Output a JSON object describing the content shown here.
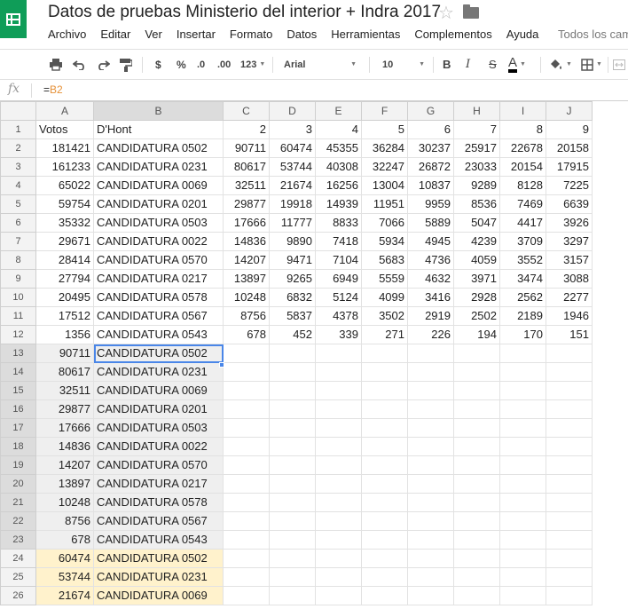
{
  "app": {
    "title": "Datos de pruebas Ministerio del interior + Indra 2017",
    "menu": [
      "Archivo",
      "Editar",
      "Ver",
      "Insertar",
      "Formato",
      "Datos",
      "Herramientas",
      "Complementos",
      "Ayuda"
    ],
    "menu_hint": "Todos los cam"
  },
  "toolbar": {
    "currency": "$",
    "percent": "%",
    "dec_decrease": ".0",
    "dec_increase": ".00",
    "more_formats": "123",
    "font": "Arial",
    "font_size": "10",
    "bold": "B",
    "italic": "I",
    "strike": "S",
    "text_color_glyph": "A"
  },
  "formula": {
    "fx_label": "fx",
    "prefix": "=",
    "ref": "B2"
  },
  "colors": {
    "brand": "#0f9d58",
    "selection": "#4a86e8",
    "highlight": "#fff2cc",
    "formula_ref": "#e69138"
  },
  "grid": {
    "columns": [
      "A",
      "B",
      "C",
      "D",
      "E",
      "F",
      "G",
      "H",
      "I",
      "J"
    ],
    "rows": [
      {
        "n": "1",
        "cells": [
          "Votos",
          "D'Hont",
          "2",
          "3",
          "4",
          "5",
          "6",
          "7",
          "8",
          "9"
        ]
      },
      {
        "n": "2",
        "cells": [
          "181421",
          "CANDIDATURA 0502",
          "90711",
          "60474",
          "45355",
          "36284",
          "30237",
          "25917",
          "22678",
          "20158"
        ]
      },
      {
        "n": "3",
        "cells": [
          "161233",
          "CANDIDATURA 0231",
          "80617",
          "53744",
          "40308",
          "32247",
          "26872",
          "23033",
          "20154",
          "17915"
        ]
      },
      {
        "n": "4",
        "cells": [
          "65022",
          "CANDIDATURA 0069",
          "32511",
          "21674",
          "16256",
          "13004",
          "10837",
          "9289",
          "8128",
          "7225"
        ]
      },
      {
        "n": "5",
        "cells": [
          "59754",
          "CANDIDATURA 0201",
          "29877",
          "19918",
          "14939",
          "11951",
          "9959",
          "8536",
          "7469",
          "6639"
        ]
      },
      {
        "n": "6",
        "cells": [
          "35332",
          "CANDIDATURA 0503",
          "17666",
          "11777",
          "8833",
          "7066",
          "5889",
          "5047",
          "4417",
          "3926"
        ]
      },
      {
        "n": "7",
        "cells": [
          "29671",
          "CANDIDATURA 0022",
          "14836",
          "9890",
          "7418",
          "5934",
          "4945",
          "4239",
          "3709",
          "3297"
        ]
      },
      {
        "n": "8",
        "cells": [
          "28414",
          "CANDIDATURA 0570",
          "14207",
          "9471",
          "7104",
          "5683",
          "4736",
          "4059",
          "3552",
          "3157"
        ]
      },
      {
        "n": "9",
        "cells": [
          "27794",
          "CANDIDATURA 0217",
          "13897",
          "9265",
          "6949",
          "5559",
          "4632",
          "3971",
          "3474",
          "3088"
        ]
      },
      {
        "n": "10",
        "cells": [
          "20495",
          "CANDIDATURA 0578",
          "10248",
          "6832",
          "5124",
          "4099",
          "3416",
          "2928",
          "2562",
          "2277"
        ]
      },
      {
        "n": "11",
        "cells": [
          "17512",
          "CANDIDATURA 0567",
          "8756",
          "5837",
          "4378",
          "3502",
          "2919",
          "2502",
          "2189",
          "1946"
        ]
      },
      {
        "n": "12",
        "cells": [
          "1356",
          "CANDIDATURA 0543",
          "678",
          "452",
          "339",
          "271",
          "226",
          "194",
          "170",
          "151"
        ]
      },
      {
        "n": "13",
        "cells": [
          "90711",
          "CANDIDATURA 0502",
          "",
          "",
          "",
          "",
          "",
          "",
          "",
          ""
        ]
      },
      {
        "n": "14",
        "cells": [
          "80617",
          "CANDIDATURA 0231",
          "",
          "",
          "",
          "",
          "",
          "",
          "",
          ""
        ]
      },
      {
        "n": "15",
        "cells": [
          "32511",
          "CANDIDATURA 0069",
          "",
          "",
          "",
          "",
          "",
          "",
          "",
          ""
        ]
      },
      {
        "n": "16",
        "cells": [
          "29877",
          "CANDIDATURA 0201",
          "",
          "",
          "",
          "",
          "",
          "",
          "",
          ""
        ]
      },
      {
        "n": "17",
        "cells": [
          "17666",
          "CANDIDATURA 0503",
          "",
          "",
          "",
          "",
          "",
          "",
          "",
          ""
        ]
      },
      {
        "n": "18",
        "cells": [
          "14836",
          "CANDIDATURA 0022",
          "",
          "",
          "",
          "",
          "",
          "",
          "",
          ""
        ]
      },
      {
        "n": "19",
        "cells": [
          "14207",
          "CANDIDATURA 0570",
          "",
          "",
          "",
          "",
          "",
          "",
          "",
          ""
        ]
      },
      {
        "n": "20",
        "cells": [
          "13897",
          "CANDIDATURA 0217",
          "",
          "",
          "",
          "",
          "",
          "",
          "",
          ""
        ]
      },
      {
        "n": "21",
        "cells": [
          "10248",
          "CANDIDATURA 0578",
          "",
          "",
          "",
          "",
          "",
          "",
          "",
          ""
        ]
      },
      {
        "n": "22",
        "cells": [
          "8756",
          "CANDIDATURA 0567",
          "",
          "",
          "",
          "",
          "",
          "",
          "",
          ""
        ]
      },
      {
        "n": "23",
        "cells": [
          "678",
          "CANDIDATURA 0543",
          "",
          "",
          "",
          "",
          "",
          "",
          "",
          ""
        ]
      },
      {
        "n": "24",
        "cells": [
          "60474",
          "CANDIDATURA 0502",
          "",
          "",
          "",
          "",
          "",
          "",
          "",
          ""
        ]
      },
      {
        "n": "25",
        "cells": [
          "53744",
          "CANDIDATURA 0231",
          "",
          "",
          "",
          "",
          "",
          "",
          "",
          ""
        ]
      },
      {
        "n": "26",
        "cells": [
          "21674",
          "CANDIDATURA 0069",
          "",
          "",
          "",
          "",
          "",
          "",
          "",
          ""
        ]
      }
    ]
  }
}
